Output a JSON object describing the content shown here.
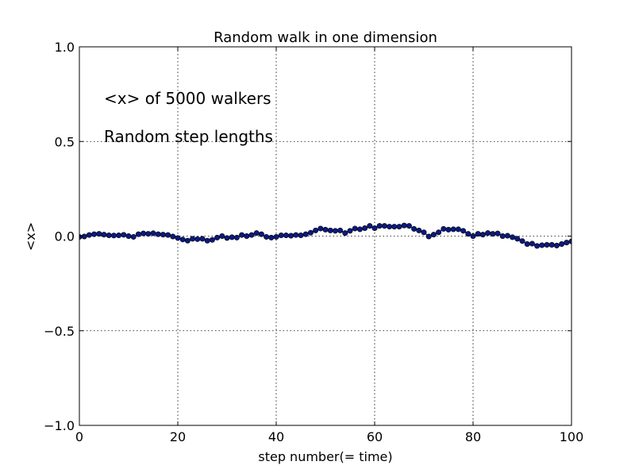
{
  "chart_data": {
    "type": "line",
    "title": "Random walk in one dimension",
    "xlabel": "step number(= time)",
    "ylabel": "<x>",
    "xlim": [
      0,
      100
    ],
    "ylim": [
      -1.0,
      1.0
    ],
    "xticks": [
      0,
      20,
      40,
      60,
      80,
      100
    ],
    "xtick_labels": [
      "0",
      "20",
      "40",
      "60",
      "80",
      "100"
    ],
    "yticks": [
      1.0,
      0.5,
      0.0,
      -0.5,
      -1.0
    ],
    "ytick_labels": [
      "1.0",
      "0.5",
      "0.0",
      "−0.5",
      "−1.0"
    ],
    "grid": true,
    "annotations": [
      "<x> of 5000 walkers",
      "Random step lengths"
    ],
    "line_color": "#0000ff",
    "marker_color": "#0a1a80",
    "series": [
      {
        "x": [
          0,
          1,
          2,
          3,
          4,
          5,
          6,
          7,
          8,
          9,
          10,
          11,
          12,
          13,
          14,
          15,
          16,
          17,
          18,
          19,
          20,
          21,
          22,
          23,
          24,
          25,
          26,
          27,
          28,
          29,
          30,
          31,
          32,
          33,
          34,
          35,
          36,
          37,
          38,
          39,
          40,
          41,
          42,
          43,
          44,
          45,
          46,
          47,
          48,
          49,
          50,
          51,
          52,
          53,
          54,
          55,
          56,
          57,
          58,
          59,
          60,
          61,
          62,
          63,
          64,
          65,
          66,
          67,
          68,
          69,
          70,
          71,
          72,
          73,
          74,
          75,
          76,
          77,
          78,
          79,
          80,
          81,
          82,
          83,
          84,
          85,
          86,
          87,
          88,
          89,
          90,
          91,
          92,
          93,
          94,
          95,
          96,
          97,
          98,
          99,
          100
        ],
        "values": [
          -0.004,
          -0.002,
          0.006,
          0.01,
          0.012,
          0.008,
          0.004,
          0.003,
          0.004,
          0.007,
          0.0,
          -0.004,
          0.01,
          0.014,
          0.012,
          0.015,
          0.01,
          0.008,
          0.006,
          -0.002,
          -0.01,
          -0.018,
          -0.024,
          -0.014,
          -0.016,
          -0.014,
          -0.024,
          -0.02,
          -0.008,
          0.0,
          -0.01,
          -0.006,
          -0.008,
          0.006,
          0.0,
          0.006,
          0.016,
          0.01,
          -0.004,
          -0.008,
          -0.004,
          0.004,
          0.004,
          0.002,
          0.006,
          0.004,
          0.01,
          0.018,
          0.03,
          0.04,
          0.034,
          0.03,
          0.028,
          0.03,
          0.016,
          0.028,
          0.04,
          0.036,
          0.042,
          0.054,
          0.042,
          0.054,
          0.054,
          0.05,
          0.05,
          0.05,
          0.056,
          0.054,
          0.038,
          0.03,
          0.02,
          -0.002,
          0.008,
          0.02,
          0.038,
          0.034,
          0.036,
          0.036,
          0.028,
          0.012,
          0.0,
          0.012,
          0.008,
          0.016,
          0.012,
          0.014,
          0.0,
          0.002,
          -0.006,
          -0.014,
          -0.026,
          -0.042,
          -0.04,
          -0.052,
          -0.048,
          -0.046,
          -0.046,
          -0.05,
          -0.042,
          -0.034,
          -0.028
        ]
      }
    ]
  }
}
